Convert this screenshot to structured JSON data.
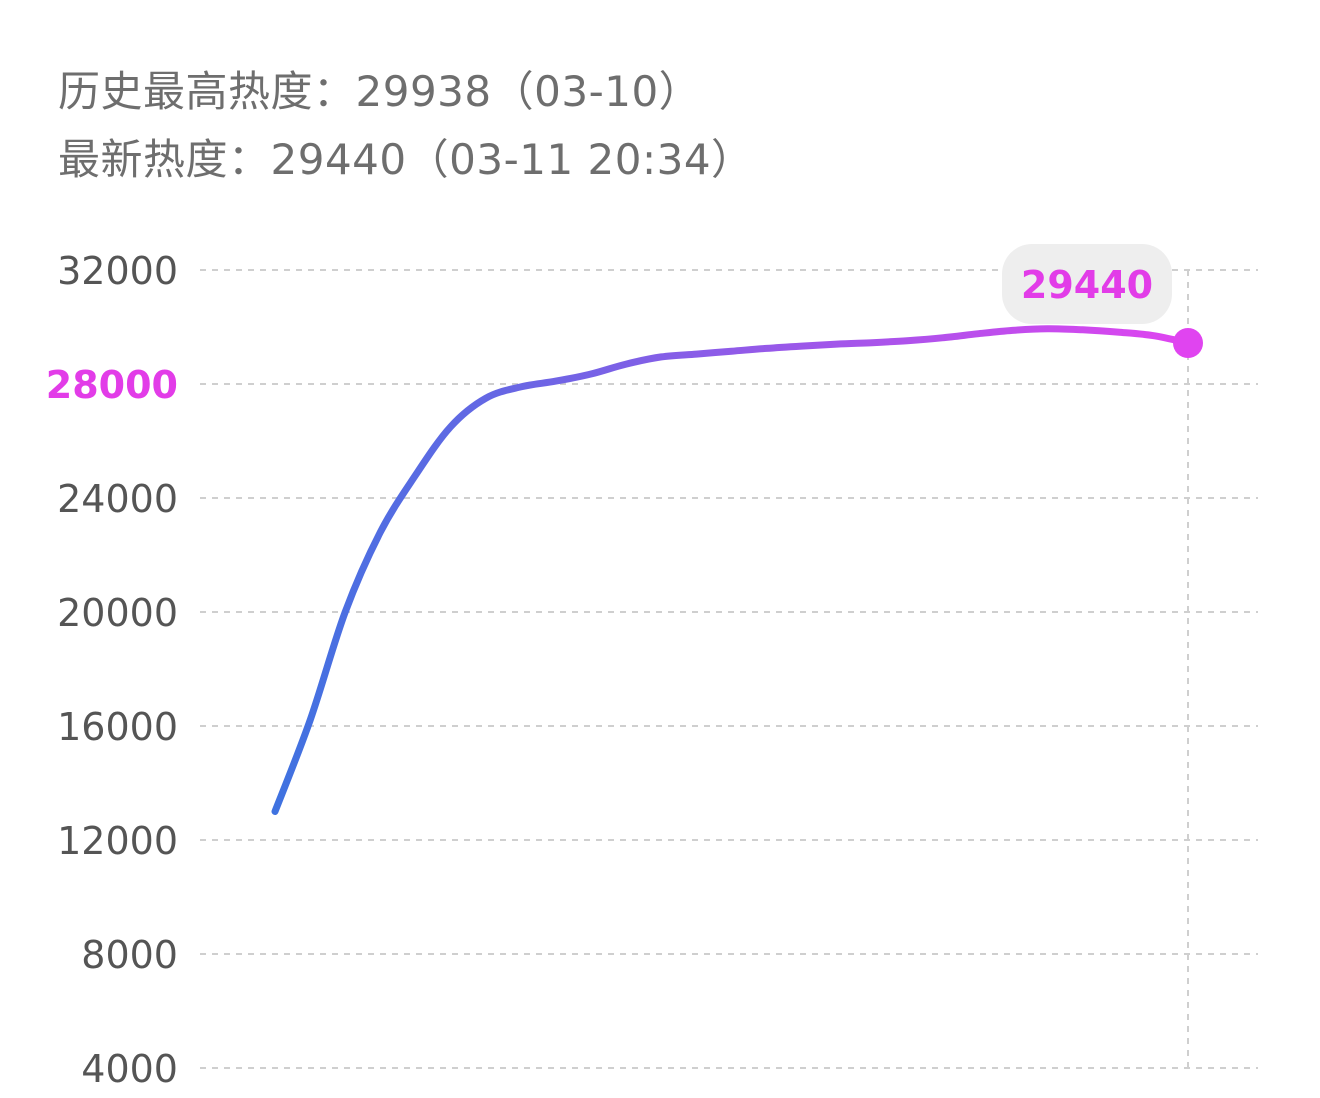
{
  "header": {
    "peak_label": "历史最高热度：",
    "peak_value": "29938",
    "peak_date": "（03-10）",
    "latest_label": "最新热度：",
    "latest_value": "29440",
    "latest_time": "（03-11 20:34）"
  },
  "colors": {
    "line_start": "#3f72e0",
    "line_end": "#e044f0",
    "highlight": "#e23ce8",
    "grid": "#cfcfcf",
    "tick_text": "#555555",
    "bubble_bg": "#eeeeee"
  },
  "chart_data": {
    "type": "line",
    "title": "",
    "xlabel": "",
    "ylabel": "",
    "ylim": [
      4000,
      32000
    ],
    "yticks": [
      32000,
      28000,
      24000,
      20000,
      16000,
      12000,
      8000,
      4000
    ],
    "highlight_tick": 28000,
    "grid": true,
    "series": [
      {
        "values": [
          13000,
          16200,
          20000,
          22800,
          24800,
          26500,
          27500,
          27900,
          28100,
          28350,
          28700,
          28950,
          29050,
          29150,
          29250,
          29330,
          29400,
          29450,
          29520,
          29620,
          29760,
          29880,
          29938,
          29900,
          29820,
          29700,
          29440
        ]
      }
    ],
    "annotation": {
      "label": "29440",
      "value": 29440
    }
  }
}
